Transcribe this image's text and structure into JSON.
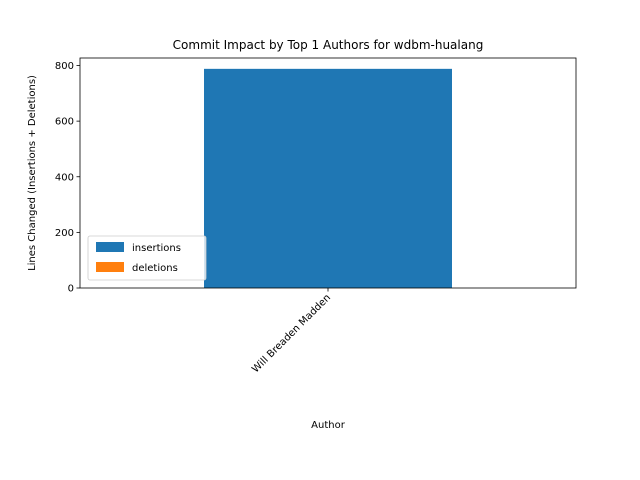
{
  "chart_data": {
    "type": "bar",
    "stacked": true,
    "title": "Commit Impact by Top 1 Authors for wdbm-hualang",
    "xlabel": "Author",
    "ylabel": "Lines Changed (Insertions + Deletions)",
    "categories": [
      "Will Breaden Madden"
    ],
    "series": [
      {
        "name": "insertions",
        "values": [
          788
        ],
        "color": "#1f77b4"
      },
      {
        "name": "deletions",
        "values": [
          0
        ],
        "color": "#ff7f0e"
      }
    ],
    "ylim": [
      0,
      827
    ],
    "yticks": [
      0,
      200,
      400,
      600,
      800
    ],
    "grid": false,
    "legend_position": "lower-left"
  }
}
